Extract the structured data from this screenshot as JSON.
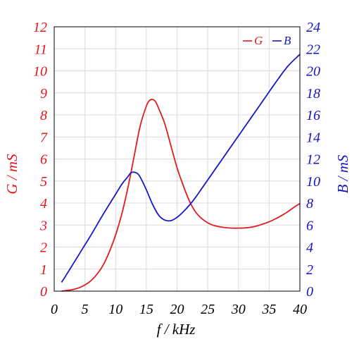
{
  "chart_data": {
    "type": "line",
    "title": "",
    "xlabel": "f / kHz",
    "ylabel_left": "G / mS",
    "ylabel_right": "B / mS",
    "xlim": [
      0,
      40
    ],
    "ylim_left": [
      0,
      12
    ],
    "ylim_right": [
      0,
      24
    ],
    "xticks": [
      0,
      5,
      10,
      15,
      20,
      25,
      30,
      35,
      40
    ],
    "yticks_left": [
      0,
      1,
      2,
      3,
      4,
      5,
      6,
      7,
      8,
      9,
      10,
      11,
      12
    ],
    "yticks_right": [
      0,
      2,
      4,
      6,
      8,
      10,
      12,
      14,
      16,
      18,
      20,
      22,
      24
    ],
    "grid": true,
    "legend_position": "top-right",
    "colors": {
      "left_axis": "#e8141c",
      "right_axis": "#1414c8"
    },
    "series": [
      {
        "name": "G",
        "axis": "left",
        "color": "#e21b1b",
        "x": [
          1.2,
          2,
          3,
          4,
          5,
          6,
          7,
          8,
          9,
          10,
          11,
          12,
          13,
          14,
          15,
          15.5,
          16,
          16.5,
          17,
          18,
          19,
          20,
          21,
          22,
          23,
          24,
          25,
          26,
          27,
          28,
          29,
          30,
          31,
          32,
          33,
          34,
          35,
          36,
          37,
          38,
          39,
          40
        ],
        "y": [
          0.0,
          0.03,
          0.07,
          0.15,
          0.28,
          0.48,
          0.78,
          1.2,
          1.8,
          2.55,
          3.5,
          4.7,
          6.1,
          7.5,
          8.4,
          8.65,
          8.7,
          8.6,
          8.3,
          7.6,
          6.6,
          5.6,
          4.8,
          4.1,
          3.6,
          3.3,
          3.1,
          2.98,
          2.92,
          2.88,
          2.86,
          2.86,
          2.87,
          2.9,
          2.96,
          3.05,
          3.15,
          3.28,
          3.43,
          3.6,
          3.8,
          3.98
        ]
      },
      {
        "name": "B",
        "axis": "right",
        "color": "#1818c8",
        "x": [
          1.2,
          2,
          4,
          6,
          8,
          10,
          11,
          12,
          12.5,
          13,
          13.5,
          14,
          15,
          16,
          17,
          18,
          19,
          20,
          21,
          22,
          23,
          24,
          25,
          26,
          27,
          28,
          30,
          32,
          34,
          36,
          38,
          40
        ],
        "y": [
          0.8,
          1.5,
          3.3,
          5.1,
          7.0,
          8.8,
          9.7,
          10.4,
          10.75,
          10.8,
          10.7,
          10.35,
          9.2,
          7.9,
          6.9,
          6.45,
          6.4,
          6.7,
          7.2,
          7.8,
          8.5,
          9.3,
          10.1,
          10.9,
          11.7,
          12.5,
          14.1,
          15.7,
          17.3,
          18.9,
          20.4,
          21.5
        ]
      }
    ]
  }
}
